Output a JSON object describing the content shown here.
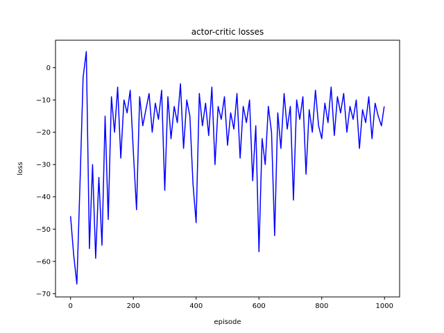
{
  "chart_data": {
    "type": "line",
    "title": "actor-critic losses",
    "xlabel": "episode",
    "ylabel": "loss",
    "xlim": [
      -48,
      1048
    ],
    "ylim": [
      -71,
      8.5
    ],
    "xticks": [
      0,
      200,
      400,
      600,
      800,
      1000
    ],
    "yticks": [
      0,
      -10,
      -20,
      -30,
      -40,
      -50,
      -60,
      -70
    ],
    "grid": false,
    "legend": "none",
    "series": [
      {
        "color": "#0000ff",
        "x": [
          0,
          10,
          20,
          30,
          40,
          50,
          60,
          70,
          80,
          90,
          100,
          110,
          120,
          130,
          140,
          150,
          160,
          170,
          180,
          190,
          200,
          210,
          220,
          230,
          240,
          250,
          260,
          270,
          280,
          290,
          300,
          310,
          320,
          330,
          340,
          350,
          360,
          370,
          380,
          390,
          400,
          410,
          420,
          430,
          440,
          450,
          460,
          470,
          480,
          490,
          500,
          510,
          520,
          530,
          540,
          550,
          560,
          570,
          580,
          590,
          600,
          610,
          620,
          630,
          640,
          650,
          660,
          670,
          680,
          690,
          700,
          710,
          720,
          730,
          740,
          750,
          760,
          770,
          780,
          790,
          800,
          810,
          820,
          830,
          840,
          850,
          860,
          870,
          880,
          890,
          900,
          910,
          920,
          930,
          940,
          950,
          960,
          970,
          980,
          990,
          999
        ],
        "y": [
          -46,
          -58,
          -67,
          -36,
          -3,
          5,
          -56,
          -30,
          -59,
          -34,
          -55,
          -15,
          -47,
          -9,
          -20,
          -6,
          -28,
          -10,
          -14,
          -7,
          -26,
          -44,
          -9,
          -18,
          -13,
          -8,
          -20,
          -11,
          -16,
          -7,
          -38,
          -9,
          -22,
          -12,
          -17,
          -5,
          -25,
          -10,
          -15,
          -36,
          -48,
          -8,
          -18,
          -11,
          -21,
          -6,
          -30,
          -12,
          -16,
          -9,
          -24,
          -14,
          -19,
          -8,
          -28,
          -12,
          -17,
          -10,
          -35,
          -18,
          -57,
          -22,
          -30,
          -12,
          -20,
          -52,
          -14,
          -25,
          -8,
          -19,
          -12,
          -41,
          -10,
          -16,
          -9,
          -33,
          -13,
          -20,
          -7,
          -18,
          -22,
          -11,
          -17,
          -6,
          -21,
          -9,
          -14,
          -8,
          -20,
          -12,
          -16,
          -10,
          -25,
          -13,
          -17,
          -9,
          -22,
          -11,
          -15,
          -18,
          -12
        ]
      }
    ]
  }
}
